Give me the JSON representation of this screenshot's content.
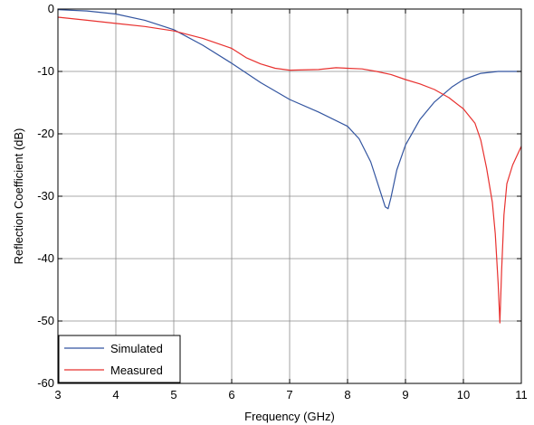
{
  "chart_data": {
    "type": "line",
    "title": "",
    "xlabel": "Frequency (GHz)",
    "ylabel": "Reflection Coefficient (dB)",
    "xlim": [
      3,
      11
    ],
    "ylim": [
      -60,
      0
    ],
    "xticks": [
      3,
      4,
      5,
      6,
      7,
      8,
      9,
      10,
      11
    ],
    "yticks": [
      0,
      -10,
      -20,
      -30,
      -40,
      -50,
      -60
    ],
    "grid": true,
    "legend_position": "bottom-left",
    "series": [
      {
        "name": "Simulated",
        "color": "#3355a0",
        "x": [
          3.0,
          3.5,
          4.0,
          4.5,
          5.0,
          5.5,
          6.0,
          6.5,
          7.0,
          7.5,
          8.0,
          8.2,
          8.4,
          8.55,
          8.65,
          8.7,
          8.75,
          8.85,
          9.0,
          9.25,
          9.5,
          9.8,
          10.0,
          10.3,
          10.6,
          11.0
        ],
        "y": [
          -0.1,
          -0.3,
          -0.8,
          -1.8,
          -3.3,
          -5.8,
          -8.7,
          -11.8,
          -14.5,
          -16.5,
          -18.8,
          -20.8,
          -24.5,
          -28.8,
          -31.7,
          -32.0,
          -30.2,
          -25.8,
          -21.8,
          -17.7,
          -14.9,
          -12.5,
          -11.3,
          -10.3,
          -10.0,
          -10.0
        ]
      },
      {
        "name": "Measured",
        "color": "#e8312f",
        "x": [
          3.0,
          3.5,
          4.0,
          4.5,
          5.0,
          5.5,
          6.0,
          6.25,
          6.5,
          6.75,
          7.0,
          7.5,
          7.8,
          8.0,
          8.25,
          8.5,
          8.75,
          9.0,
          9.25,
          9.5,
          9.75,
          10.0,
          10.2,
          10.3,
          10.4,
          10.5,
          10.55,
          10.6,
          10.63,
          10.66,
          10.7,
          10.75,
          10.85,
          11.0
        ],
        "y": [
          -1.3,
          -1.8,
          -2.3,
          -2.8,
          -3.5,
          -4.7,
          -6.3,
          -7.8,
          -8.8,
          -9.5,
          -9.8,
          -9.7,
          -9.4,
          -9.5,
          -9.6,
          -10.0,
          -10.5,
          -11.3,
          -12.0,
          -12.9,
          -14.2,
          -16.0,
          -18.3,
          -21.0,
          -25.5,
          -31.0,
          -36.0,
          -44.0,
          -50.3,
          -42.0,
          -33.0,
          -28.0,
          -25.0,
          -22.0
        ]
      }
    ]
  }
}
